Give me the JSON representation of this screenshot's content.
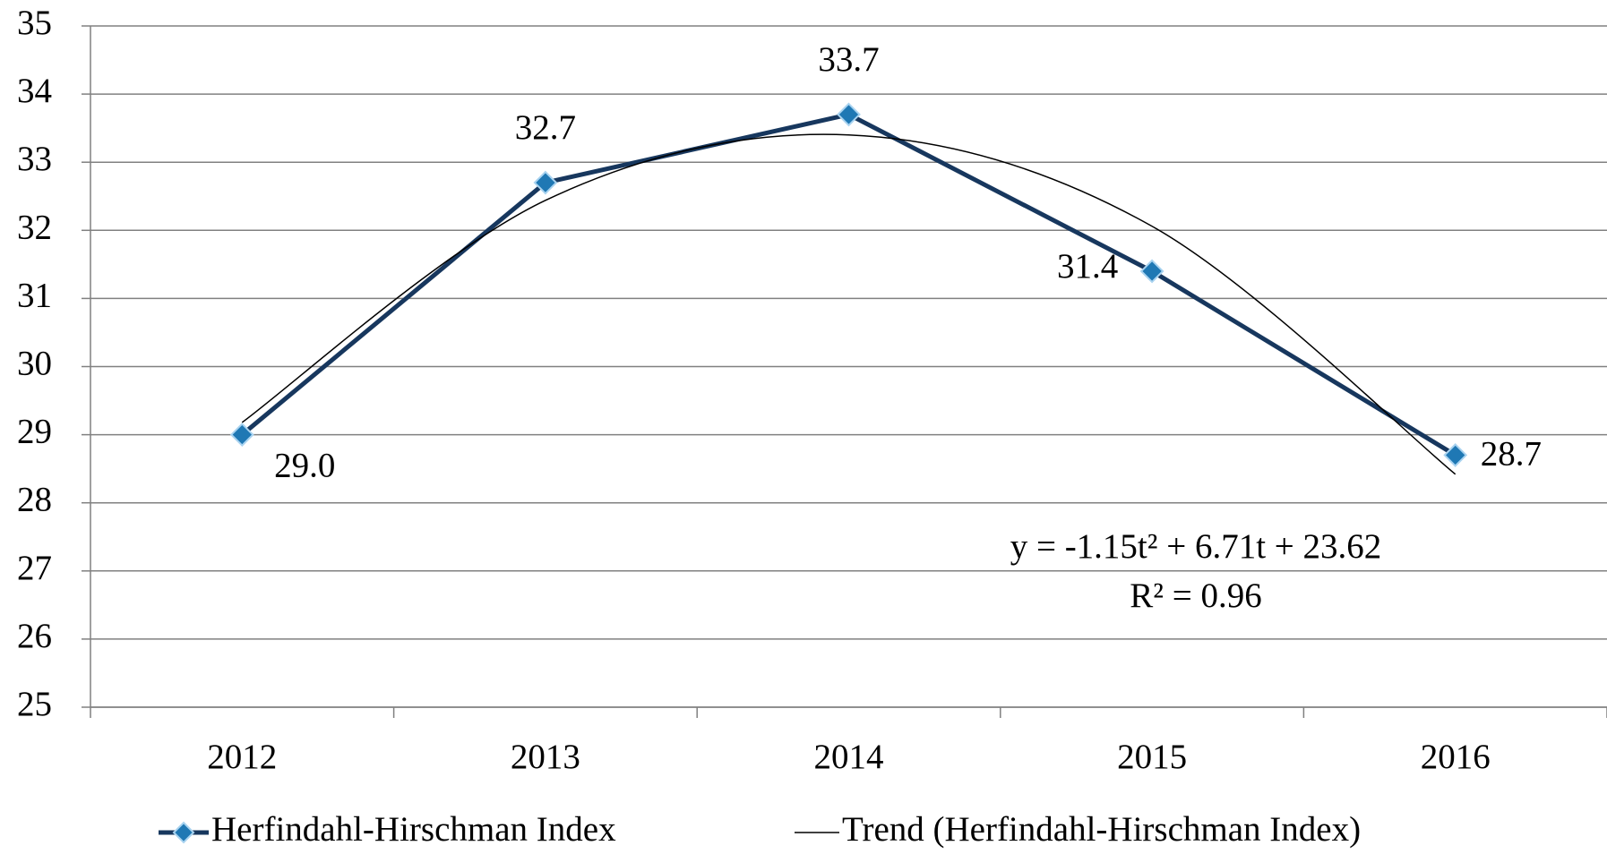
{
  "chart_data": {
    "type": "line",
    "categories": [
      "2012",
      "2013",
      "2014",
      "2015",
      "2016"
    ],
    "series": [
      {
        "name": "Herfindahl-Hirschman Index",
        "color": "#17375e",
        "marker_color": "#1f78b4",
        "values": [
          29.0,
          32.7,
          33.7,
          31.4,
          28.7
        ],
        "value_labels": [
          "29.0",
          "32.7",
          "33.7",
          "31.4",
          "28.7"
        ]
      },
      {
        "name": "Trend (Herfindahl-Hirschman Index)",
        "color": "#000000",
        "values": [
          29.18,
          32.44,
          33.4,
          32.06,
          28.42
        ],
        "smooth": true
      }
    ],
    "ylim": [
      25,
      35
    ],
    "yticks": [
      25,
      26,
      27,
      28,
      29,
      30,
      31,
      32,
      33,
      34,
      35
    ],
    "grid": true,
    "annotations": [
      "y = -1.15t² + 6.71t + 23.62",
      "R² = 0.96"
    ],
    "legend": "bottom"
  }
}
